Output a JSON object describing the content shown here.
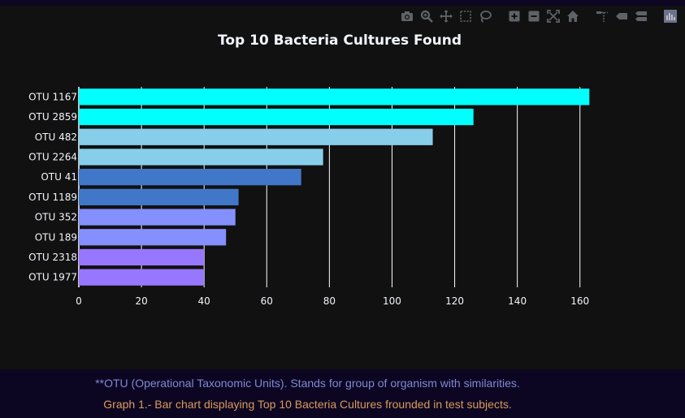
{
  "colors": {
    "page_bg": "#0d0622",
    "plot_bg": "#111111",
    "text": "#f2f5fa",
    "grid": "#ffffff",
    "footer_note": "#7e89d6",
    "footer_caption": "#d89b5c",
    "modebar_icon": "#7a7f86",
    "modebar_logo": "#8a93b8"
  },
  "modebar": {
    "buttons": [
      {
        "name": "camera-icon"
      },
      {
        "name": "zoom-icon"
      },
      {
        "name": "pan-icon"
      },
      {
        "name": "box-select-icon"
      },
      {
        "name": "lasso-select-icon"
      },
      {
        "name": "zoom-in-icon"
      },
      {
        "name": "zoom-out-icon"
      },
      {
        "name": "autoscale-icon"
      },
      {
        "name": "reset-axes-icon"
      },
      {
        "name": "spike-lines-icon"
      },
      {
        "name": "hover-closest-icon"
      },
      {
        "name": "hover-compare-icon"
      },
      {
        "name": "plotly-logo-icon"
      }
    ]
  },
  "chart_data": {
    "type": "bar",
    "orientation": "horizontal",
    "title": "Top 10 Bacteria Cultures Found",
    "xlabel": "",
    "ylabel": "",
    "xlim": [
      0,
      165
    ],
    "x_ticks": [
      0,
      20,
      40,
      60,
      80,
      100,
      120,
      140,
      160
    ],
    "grid": "vertical",
    "categories": [
      "OTU 1167",
      "OTU 2859",
      "OTU 482",
      "OTU 2264",
      "OTU 41",
      "OTU 1189",
      "OTU 352",
      "OTU 189",
      "OTU 2318",
      "OTU 1977"
    ],
    "values": [
      163,
      126,
      113,
      78,
      71,
      51,
      50,
      47,
      40,
      40
    ],
    "bar_colors": [
      "#00ffff",
      "#00ffff",
      "#87ceeb",
      "#87ceeb",
      "#4177c8",
      "#4177c8",
      "#8590ff",
      "#8590ff",
      "#9877ff",
      "#9877ff"
    ]
  },
  "footer": {
    "note": "**OTU (Operational Taxonomic Units). Stands for group of organism with similarities.",
    "caption": "Graph 1.- Bar chart displaying Top 10 Bacteria Cultures frounded in test subjects."
  }
}
